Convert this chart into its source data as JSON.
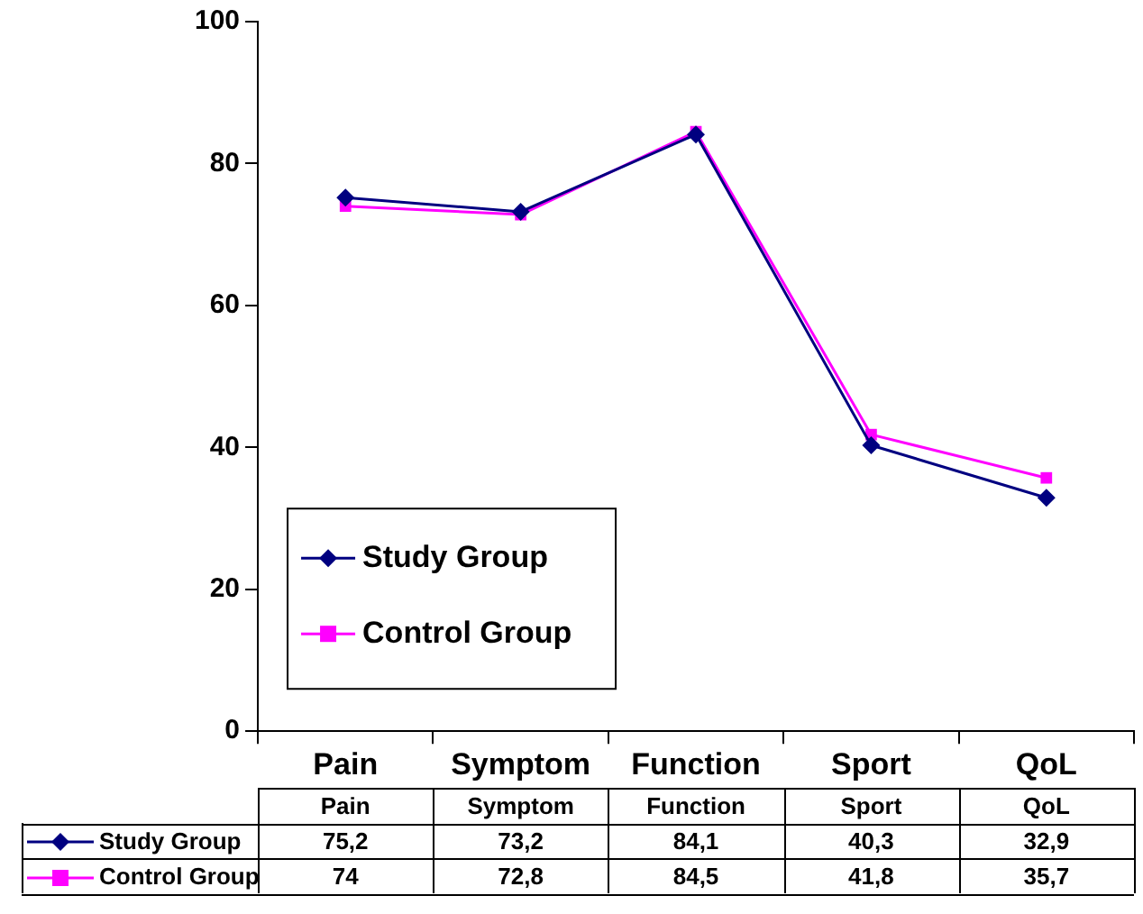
{
  "chart_data": {
    "type": "line",
    "categories": [
      "Pain",
      "Symptom",
      "Function",
      "Sport",
      "QoL"
    ],
    "series": [
      {
        "name": "Study Group",
        "color": "#000080",
        "marker": "diamond",
        "values": [
          75.2,
          73.2,
          84.1,
          40.3,
          32.9
        ],
        "value_labels": [
          "75,2",
          "73,2",
          "84,1",
          "40,3",
          "32,9"
        ]
      },
      {
        "name": "Control Group",
        "color": "#ff00ff",
        "marker": "square",
        "values": [
          74,
          72.8,
          84.5,
          41.8,
          35.7
        ],
        "value_labels": [
          "74",
          "72,8",
          "84,5",
          "41,8",
          "35,7"
        ]
      }
    ],
    "ylim": [
      0,
      100
    ],
    "yticks": [
      0,
      20,
      40,
      60,
      80,
      100
    ],
    "grid": false,
    "legend": "bottom left"
  }
}
